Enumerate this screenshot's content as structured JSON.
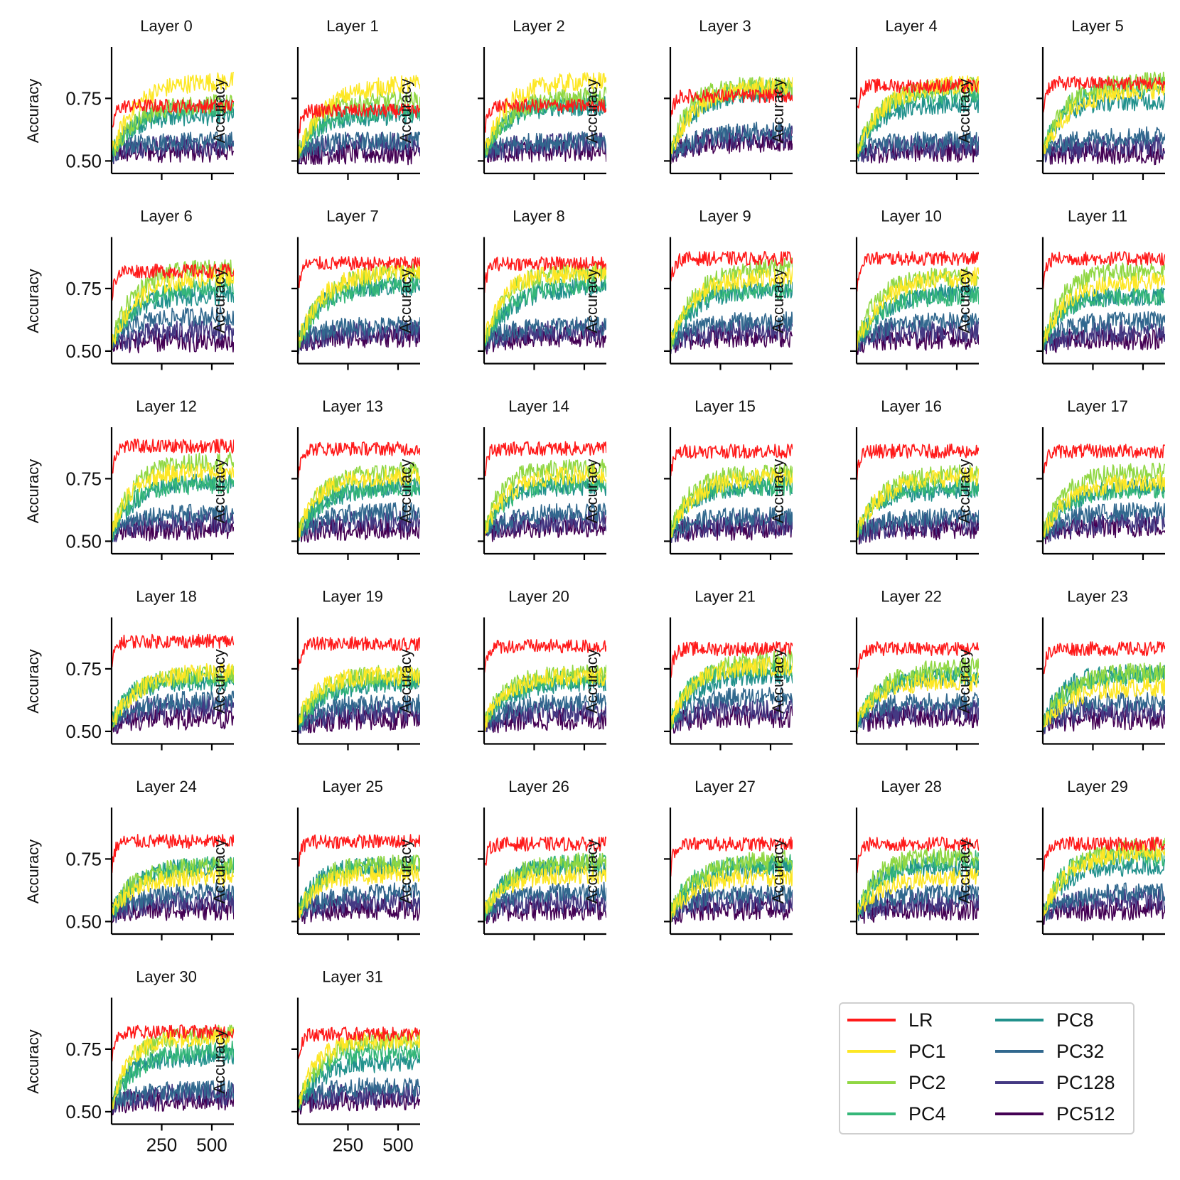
{
  "chart_data": {
    "type": "line",
    "layout": "small-multiples grid, 6 columns",
    "shared_y_label": "Accuracy",
    "y_ticks": [
      0.5,
      0.75
    ],
    "y_tick_labels": [
      "0.50",
      "0.75"
    ],
    "ylim": [
      0.45,
      0.95
    ],
    "x_ticks": [
      250,
      500
    ],
    "x_tick_labels": [
      "250",
      "500"
    ],
    "xlim": [
      0,
      610
    ],
    "x_tick_labels_shown_on": [
      "Layer 30",
      "Layer 31"
    ],
    "y_tick_labels_shown_on_first_column": true,
    "legend": {
      "placement": "bottom-right",
      "entries": [
        {
          "name": "LR",
          "color": "#ff1a1a"
        },
        {
          "name": "PC1",
          "color": "#fde725"
        },
        {
          "name": "PC2",
          "color": "#90d743"
        },
        {
          "name": "PC4",
          "color": "#35b779"
        },
        {
          "name": "PC8",
          "color": "#21918c"
        },
        {
          "name": "PC32",
          "color": "#31688e"
        },
        {
          "name": "PC128",
          "color": "#443983"
        },
        {
          "name": "PC512",
          "color": "#440154"
        }
      ]
    },
    "series_order": [
      "LR",
      "PC1",
      "PC2",
      "PC4",
      "PC8",
      "PC32",
      "PC128",
      "PC512"
    ],
    "panels": [
      {
        "title": "Layer 0",
        "plateau": {
          "LR": 0.72,
          "PC1": 0.82,
          "PC2": 0.73,
          "PC4": 0.72,
          "PC8": 0.68,
          "PC32": 0.58,
          "PC128": 0.56,
          "PC512": 0.54
        }
      },
      {
        "title": "Layer 1",
        "plateau": {
          "LR": 0.7,
          "PC1": 0.81,
          "PC2": 0.74,
          "PC4": 0.7,
          "PC8": 0.68,
          "PC32": 0.58,
          "PC128": 0.57,
          "PC512": 0.53
        }
      },
      {
        "title": "Layer 2",
        "plateau": {
          "LR": 0.72,
          "PC1": 0.82,
          "PC2": 0.76,
          "PC4": 0.74,
          "PC8": 0.72,
          "PC32": 0.58,
          "PC128": 0.57,
          "PC512": 0.54
        }
      },
      {
        "title": "Layer 3",
        "plateau": {
          "LR": 0.76,
          "PC1": 0.8,
          "PC2": 0.8,
          "PC4": 0.79,
          "PC8": 0.78,
          "PC32": 0.62,
          "PC128": 0.6,
          "PC512": 0.58
        }
      },
      {
        "title": "Layer 4",
        "plateau": {
          "LR": 0.8,
          "PC1": 0.81,
          "PC2": 0.8,
          "PC4": 0.77,
          "PC8": 0.73,
          "PC32": 0.58,
          "PC128": 0.56,
          "PC512": 0.54
        }
      },
      {
        "title": "Layer 5",
        "plateau": {
          "LR": 0.81,
          "PC1": 0.79,
          "PC2": 0.82,
          "PC4": 0.8,
          "PC8": 0.74,
          "PC32": 0.6,
          "PC128": 0.56,
          "PC512": 0.53
        }
      },
      {
        "title": "Layer 6",
        "plateau": {
          "LR": 0.82,
          "PC1": 0.8,
          "PC2": 0.83,
          "PC4": 0.76,
          "PC8": 0.72,
          "PC32": 0.64,
          "PC128": 0.58,
          "PC512": 0.54
        }
      },
      {
        "title": "Layer 7",
        "plateau": {
          "LR": 0.85,
          "PC1": 0.82,
          "PC2": 0.82,
          "PC4": 0.77,
          "PC8": 0.76,
          "PC32": 0.6,
          "PC128": 0.58,
          "PC512": 0.56
        }
      },
      {
        "title": "Layer 8",
        "plateau": {
          "LR": 0.85,
          "PC1": 0.81,
          "PC2": 0.82,
          "PC4": 0.77,
          "PC8": 0.76,
          "PC32": 0.6,
          "PC128": 0.58,
          "PC512": 0.56
        }
      },
      {
        "title": "Layer 9",
        "plateau": {
          "LR": 0.87,
          "PC1": 0.8,
          "PC2": 0.84,
          "PC4": 0.74,
          "PC8": 0.75,
          "PC32": 0.62,
          "PC128": 0.59,
          "PC512": 0.56
        }
      },
      {
        "title": "Layer 10",
        "plateau": {
          "LR": 0.87,
          "PC1": 0.8,
          "PC2": 0.8,
          "PC4": 0.72,
          "PC8": 0.74,
          "PC32": 0.62,
          "PC128": 0.58,
          "PC512": 0.55
        }
      },
      {
        "title": "Layer 11",
        "plateau": {
          "LR": 0.87,
          "PC1": 0.78,
          "PC2": 0.82,
          "PC4": 0.72,
          "PC8": 0.72,
          "PC32": 0.62,
          "PC128": 0.58,
          "PC512": 0.55
        }
      },
      {
        "title": "Layer 12",
        "plateau": {
          "LR": 0.88,
          "PC1": 0.78,
          "PC2": 0.82,
          "PC4": 0.73,
          "PC8": 0.74,
          "PC32": 0.61,
          "PC128": 0.58,
          "PC512": 0.55
        }
      },
      {
        "title": "Layer 13",
        "plateau": {
          "LR": 0.87,
          "PC1": 0.76,
          "PC2": 0.78,
          "PC4": 0.72,
          "PC8": 0.72,
          "PC32": 0.62,
          "PC128": 0.58,
          "PC512": 0.55
        }
      },
      {
        "title": "Layer 14",
        "plateau": {
          "LR": 0.87,
          "PC1": 0.77,
          "PC2": 0.79,
          "PC4": 0.73,
          "PC8": 0.72,
          "PC32": 0.62,
          "PC128": 0.58,
          "PC512": 0.56
        }
      },
      {
        "title": "Layer 15",
        "plateau": {
          "LR": 0.86,
          "PC1": 0.76,
          "PC2": 0.77,
          "PC4": 0.72,
          "PC8": 0.72,
          "PC32": 0.6,
          "PC128": 0.57,
          "PC512": 0.55
        }
      },
      {
        "title": "Layer 16",
        "plateau": {
          "LR": 0.86,
          "PC1": 0.76,
          "PC2": 0.77,
          "PC4": 0.72,
          "PC8": 0.7,
          "PC32": 0.6,
          "PC128": 0.57,
          "PC512": 0.55
        }
      },
      {
        "title": "Layer 17",
        "plateau": {
          "LR": 0.86,
          "PC1": 0.74,
          "PC2": 0.78,
          "PC4": 0.71,
          "PC8": 0.72,
          "PC32": 0.62,
          "PC128": 0.58,
          "PC512": 0.56
        }
      },
      {
        "title": "Layer 18",
        "plateau": {
          "LR": 0.86,
          "PC1": 0.74,
          "PC2": 0.73,
          "PC4": 0.71,
          "PC8": 0.7,
          "PC32": 0.63,
          "PC128": 0.6,
          "PC512": 0.55
        }
      },
      {
        "title": "Layer 19",
        "plateau": {
          "LR": 0.85,
          "PC1": 0.72,
          "PC2": 0.73,
          "PC4": 0.71,
          "PC8": 0.7,
          "PC32": 0.61,
          "PC128": 0.58,
          "PC512": 0.55
        }
      },
      {
        "title": "Layer 20",
        "plateau": {
          "LR": 0.84,
          "PC1": 0.72,
          "PC2": 0.73,
          "PC4": 0.71,
          "PC8": 0.7,
          "PC32": 0.62,
          "PC128": 0.58,
          "PC512": 0.55
        }
      },
      {
        "title": "Layer 21",
        "plateau": {
          "LR": 0.83,
          "PC1": 0.76,
          "PC2": 0.79,
          "PC4": 0.75,
          "PC8": 0.73,
          "PC32": 0.64,
          "PC128": 0.59,
          "PC512": 0.56
        }
      },
      {
        "title": "Layer 22",
        "plateau": {
          "LR": 0.83,
          "PC1": 0.7,
          "PC2": 0.76,
          "PC4": 0.73,
          "PC8": 0.72,
          "PC32": 0.62,
          "PC128": 0.58,
          "PC512": 0.56
        }
      },
      {
        "title": "Layer 23",
        "plateau": {
          "LR": 0.83,
          "PC1": 0.68,
          "PC2": 0.74,
          "PC4": 0.73,
          "PC8": 0.73,
          "PC32": 0.62,
          "PC128": 0.58,
          "PC512": 0.55
        }
      },
      {
        "title": "Layer 24",
        "plateau": {
          "LR": 0.82,
          "PC1": 0.68,
          "PC2": 0.72,
          "PC4": 0.73,
          "PC8": 0.72,
          "PC32": 0.62,
          "PC128": 0.58,
          "PC512": 0.55
        }
      },
      {
        "title": "Layer 25",
        "plateau": {
          "LR": 0.82,
          "PC1": 0.69,
          "PC2": 0.73,
          "PC4": 0.73,
          "PC8": 0.72,
          "PC32": 0.62,
          "PC128": 0.58,
          "PC512": 0.55
        }
      },
      {
        "title": "Layer 26",
        "plateau": {
          "LR": 0.81,
          "PC1": 0.69,
          "PC2": 0.74,
          "PC4": 0.74,
          "PC8": 0.72,
          "PC32": 0.62,
          "PC128": 0.58,
          "PC512": 0.55
        }
      },
      {
        "title": "Layer 27",
        "plateau": {
          "LR": 0.81,
          "PC1": 0.68,
          "PC2": 0.75,
          "PC4": 0.73,
          "PC8": 0.72,
          "PC32": 0.61,
          "PC128": 0.58,
          "PC512": 0.55
        }
      },
      {
        "title": "Layer 28",
        "plateau": {
          "LR": 0.81,
          "PC1": 0.68,
          "PC2": 0.76,
          "PC4": 0.75,
          "PC8": 0.72,
          "PC32": 0.61,
          "PC128": 0.58,
          "PC512": 0.55
        }
      },
      {
        "title": "Layer 29",
        "plateau": {
          "LR": 0.81,
          "PC1": 0.78,
          "PC2": 0.8,
          "PC4": 0.76,
          "PC8": 0.72,
          "PC32": 0.62,
          "PC128": 0.59,
          "PC512": 0.55
        }
      },
      {
        "title": "Layer 30",
        "plateau": {
          "LR": 0.82,
          "PC1": 0.8,
          "PC2": 0.81,
          "PC4": 0.75,
          "PC8": 0.72,
          "PC32": 0.59,
          "PC128": 0.57,
          "PC512": 0.55
        }
      },
      {
        "title": "Layer 31",
        "plateau": {
          "LR": 0.81,
          "PC1": 0.79,
          "PC2": 0.79,
          "PC4": 0.74,
          "PC8": 0.7,
          "PC32": 0.6,
          "PC128": 0.57,
          "PC512": 0.55
        }
      }
    ]
  }
}
